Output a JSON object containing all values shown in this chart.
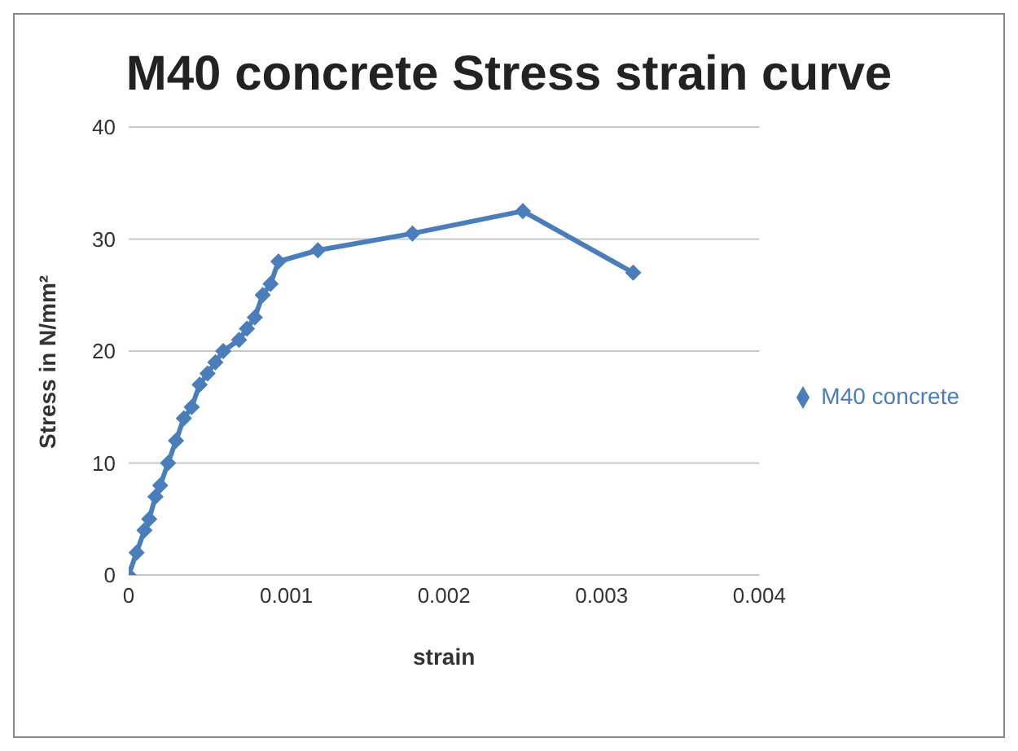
{
  "chart_data": {
    "type": "line",
    "title": "M40 concrete Stress strain curve",
    "xlabel": "strain",
    "ylabel": "Stress in N/mm²",
    "x": [
      0,
      5e-05,
      0.0001,
      0.00013,
      0.00017,
      0.0002,
      0.00025,
      0.0003,
      0.00035,
      0.0004,
      0.00045,
      0.0005,
      0.00055,
      0.0006,
      0.0007,
      0.00075,
      0.0008,
      0.00085,
      0.0009,
      0.00095,
      0.0012,
      0.0018,
      0.0025,
      0.0032
    ],
    "series": [
      {
        "name": "M40 concrete",
        "color": "#4a7ebb",
        "values": [
          0,
          2,
          4,
          5,
          7,
          8,
          10,
          12,
          14,
          15,
          17,
          18,
          19,
          20,
          21,
          22,
          23,
          25,
          26,
          28,
          29,
          30.5,
          32.5,
          27
        ]
      }
    ],
    "xlim": [
      0,
      0.004
    ],
    "xticks": [
      0,
      0.001,
      0.002,
      0.003,
      0.004
    ],
    "ylim": [
      0,
      40
    ],
    "yticks": [
      0,
      10,
      20,
      30,
      40
    ],
    "grid": "y",
    "legend": "right",
    "marker": "diamond",
    "line_style": "solid"
  }
}
